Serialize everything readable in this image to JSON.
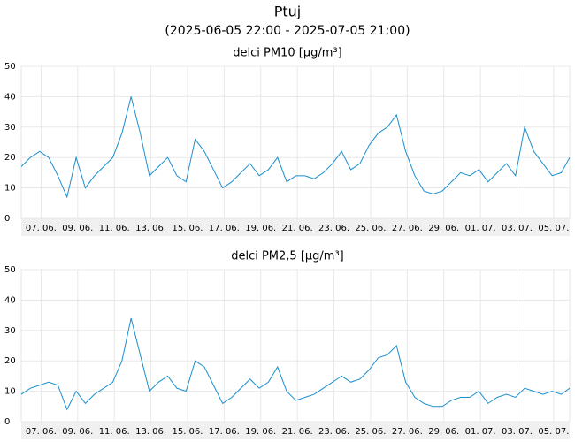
{
  "title": "Ptuj",
  "subtitle": "(2025-06-05 22:00 - 2025-07-05 21:00)",
  "chart_data": [
    {
      "type": "line",
      "title": "delci PM10 [µg/m³]",
      "x": [
        "2025-06-05 22:00",
        "2025-06-06 10:00",
        "2025-06-06 22:00",
        "2025-06-07 10:00",
        "2025-06-07 22:00",
        "2025-06-08 10:00",
        "2025-06-08 22:00",
        "2025-06-09 10:00",
        "2025-06-09 22:00",
        "2025-06-10 10:00",
        "2025-06-10 22:00",
        "2025-06-11 10:00",
        "2025-06-11 22:00",
        "2025-06-12 10:00",
        "2025-06-12 22:00",
        "2025-06-13 10:00",
        "2025-06-13 22:00",
        "2025-06-14 10:00",
        "2025-06-14 22:00",
        "2025-06-15 10:00",
        "2025-06-15 22:00",
        "2025-06-16 10:00",
        "2025-06-16 22:00",
        "2025-06-17 10:00",
        "2025-06-17 22:00",
        "2025-06-18 10:00",
        "2025-06-18 22:00",
        "2025-06-19 10:00",
        "2025-06-19 22:00",
        "2025-06-20 10:00",
        "2025-06-20 22:00",
        "2025-06-21 10:00",
        "2025-06-21 22:00",
        "2025-06-22 10:00",
        "2025-06-22 22:00",
        "2025-06-23 10:00",
        "2025-06-23 22:00",
        "2025-06-24 10:00",
        "2025-06-24 22:00",
        "2025-06-25 10:00",
        "2025-06-25 22:00",
        "2025-06-26 10:00",
        "2025-06-26 22:00",
        "2025-06-27 10:00",
        "2025-06-27 22:00",
        "2025-06-28 10:00",
        "2025-06-28 22:00",
        "2025-06-29 10:00",
        "2025-06-29 22:00",
        "2025-06-30 10:00",
        "2025-06-30 22:00",
        "2025-07-01 10:00",
        "2025-07-01 22:00",
        "2025-07-02 10:00",
        "2025-07-02 22:00",
        "2025-07-03 10:00",
        "2025-07-03 22:00",
        "2025-07-04 10:00",
        "2025-07-04 22:00",
        "2025-07-05 10:00",
        "2025-07-05 21:00"
      ],
      "series": [
        {
          "name": "PM10",
          "color": "#1a8fcf",
          "values": [
            17,
            20,
            22,
            20,
            14,
            7,
            20,
            10,
            14,
            17,
            20,
            28,
            40,
            28,
            14,
            17,
            20,
            14,
            12,
            26,
            22,
            16,
            10,
            12,
            15,
            18,
            14,
            16,
            20,
            12,
            14,
            14,
            13,
            15,
            18,
            22,
            16,
            18,
            24,
            28,
            30,
            34,
            22,
            14,
            9,
            8,
            9,
            12,
            15,
            14,
            16,
            12,
            15,
            18,
            14,
            30,
            22,
            18,
            14,
            15,
            20
          ]
        }
      ],
      "ylim": [
        0,
        50
      ],
      "yticks": [
        0,
        10,
        20,
        30,
        40,
        50
      ],
      "xlim": [
        "2025-06-05 22:00",
        "2025-07-05 21:00"
      ],
      "xticks": [
        {
          "value": "2025-06-07 00:00",
          "label": "07. 06."
        },
        {
          "value": "2025-06-09 00:00",
          "label": "09. 06."
        },
        {
          "value": "2025-06-11 00:00",
          "label": "11. 06."
        },
        {
          "value": "2025-06-13 00:00",
          "label": "13. 06."
        },
        {
          "value": "2025-06-15 00:00",
          "label": "15. 06."
        },
        {
          "value": "2025-06-17 00:00",
          "label": "17. 06."
        },
        {
          "value": "2025-06-19 00:00",
          "label": "19. 06."
        },
        {
          "value": "2025-06-21 00:00",
          "label": "21. 06."
        },
        {
          "value": "2025-06-23 00:00",
          "label": "23. 06."
        },
        {
          "value": "2025-06-25 00:00",
          "label": "25. 06."
        },
        {
          "value": "2025-06-27 00:00",
          "label": "27. 06."
        },
        {
          "value": "2025-06-29 00:00",
          "label": "29. 06."
        },
        {
          "value": "2025-07-01 00:00",
          "label": "01. 07."
        },
        {
          "value": "2025-07-03 00:00",
          "label": "03. 07."
        },
        {
          "value": "2025-07-05 00:00",
          "label": "05. 07."
        }
      ],
      "grid": true
    },
    {
      "type": "line",
      "title": "delci PM2,5 [µg/m³]",
      "x": [
        "2025-06-05 22:00",
        "2025-06-06 10:00",
        "2025-06-06 22:00",
        "2025-06-07 10:00",
        "2025-06-07 22:00",
        "2025-06-08 10:00",
        "2025-06-08 22:00",
        "2025-06-09 10:00",
        "2025-06-09 22:00",
        "2025-06-10 10:00",
        "2025-06-10 22:00",
        "2025-06-11 10:00",
        "2025-06-11 22:00",
        "2025-06-12 10:00",
        "2025-06-12 22:00",
        "2025-06-13 10:00",
        "2025-06-13 22:00",
        "2025-06-14 10:00",
        "2025-06-14 22:00",
        "2025-06-15 10:00",
        "2025-06-15 22:00",
        "2025-06-16 10:00",
        "2025-06-16 22:00",
        "2025-06-17 10:00",
        "2025-06-17 22:00",
        "2025-06-18 10:00",
        "2025-06-18 22:00",
        "2025-06-19 10:00",
        "2025-06-19 22:00",
        "2025-06-20 10:00",
        "2025-06-20 22:00",
        "2025-06-21 10:00",
        "2025-06-21 22:00",
        "2025-06-22 10:00",
        "2025-06-22 22:00",
        "2025-06-23 10:00",
        "2025-06-23 22:00",
        "2025-06-24 10:00",
        "2025-06-24 22:00",
        "2025-06-25 10:00",
        "2025-06-25 22:00",
        "2025-06-26 10:00",
        "2025-06-26 22:00",
        "2025-06-27 10:00",
        "2025-06-27 22:00",
        "2025-06-28 10:00",
        "2025-06-28 22:00",
        "2025-06-29 10:00",
        "2025-06-29 22:00",
        "2025-06-30 10:00",
        "2025-06-30 22:00",
        "2025-07-01 10:00",
        "2025-07-01 22:00",
        "2025-07-02 10:00",
        "2025-07-02 22:00",
        "2025-07-03 10:00",
        "2025-07-03 22:00",
        "2025-07-04 10:00",
        "2025-07-04 22:00",
        "2025-07-05 10:00",
        "2025-07-05 21:00"
      ],
      "series": [
        {
          "name": "PM2,5",
          "color": "#1a8fcf",
          "values": [
            9,
            11,
            12,
            13,
            12,
            4,
            10,
            6,
            9,
            11,
            13,
            20,
            34,
            22,
            10,
            13,
            15,
            11,
            10,
            20,
            18,
            12,
            6,
            8,
            11,
            14,
            11,
            13,
            18,
            10,
            7,
            8,
            9,
            11,
            13,
            15,
            13,
            14,
            17,
            21,
            22,
            25,
            13,
            8,
            6,
            5,
            5,
            7,
            8,
            8,
            10,
            6,
            8,
            9,
            8,
            11,
            10,
            9,
            10,
            9,
            11
          ]
        }
      ],
      "ylim": [
        0,
        50
      ],
      "yticks": [
        0,
        10,
        20,
        30,
        40,
        50
      ],
      "xlim": [
        "2025-06-05 22:00",
        "2025-07-05 21:00"
      ],
      "xticks": [
        {
          "value": "2025-06-07 00:00",
          "label": "07. 06."
        },
        {
          "value": "2025-06-09 00:00",
          "label": "09. 06."
        },
        {
          "value": "2025-06-11 00:00",
          "label": "11. 06."
        },
        {
          "value": "2025-06-13 00:00",
          "label": "13. 06."
        },
        {
          "value": "2025-06-15 00:00",
          "label": "15. 06."
        },
        {
          "value": "2025-06-17 00:00",
          "label": "17. 06."
        },
        {
          "value": "2025-06-19 00:00",
          "label": "19. 06."
        },
        {
          "value": "2025-06-21 00:00",
          "label": "21. 06."
        },
        {
          "value": "2025-06-23 00:00",
          "label": "23. 06."
        },
        {
          "value": "2025-06-25 00:00",
          "label": "25. 06."
        },
        {
          "value": "2025-06-27 00:00",
          "label": "27. 06."
        },
        {
          "value": "2025-06-29 00:00",
          "label": "29. 06."
        },
        {
          "value": "2025-07-01 00:00",
          "label": "01. 07."
        },
        {
          "value": "2025-07-03 00:00",
          "label": "03. 07."
        },
        {
          "value": "2025-07-05 00:00",
          "label": "05. 07."
        }
      ],
      "grid": true
    }
  ]
}
